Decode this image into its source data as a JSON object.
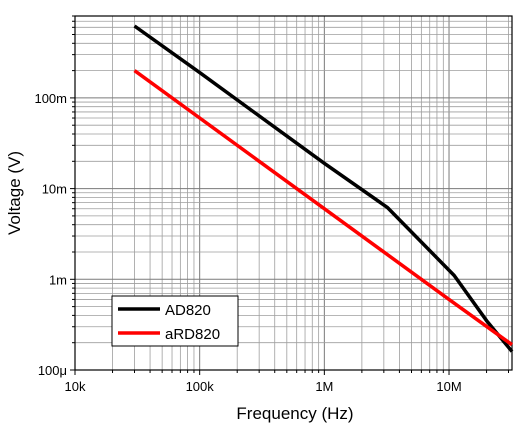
{
  "chart_data": {
    "type": "line",
    "title": "",
    "xlabel": "Frequency (Hz)",
    "ylabel": "Voltage (V)",
    "x_scale": "log",
    "y_scale": "log",
    "xlim": [
      10000,
      32000000
    ],
    "ylim": [
      0.0001,
      0.8
    ],
    "grid": true,
    "legend_position": "bottom-left",
    "x_tick_values": [
      10000,
      100000,
      1000000,
      10000000
    ],
    "x_tick_labels": [
      "10k",
      "100k",
      "1M",
      "10M"
    ],
    "y_tick_values": [
      0.0001,
      0.001,
      0.01,
      0.1
    ],
    "y_tick_labels": [
      "100μ",
      "1m",
      "10m",
      "100m"
    ],
    "series": [
      {
        "name": "AD820",
        "color": "#000000",
        "x": [
          30000,
          100000,
          1000000,
          3200000,
          11000000,
          20000000,
          32000000
        ],
        "y": [
          0.62,
          0.19,
          0.019,
          0.0062,
          0.0011,
          0.00035,
          0.00016
        ]
      },
      {
        "name": "aRD820",
        "color": "#ff0000",
        "x": [
          30000,
          100000,
          1000000,
          10000000,
          32000000
        ],
        "y": [
          0.2,
          0.06,
          0.006,
          0.0006,
          0.00019
        ]
      }
    ]
  }
}
